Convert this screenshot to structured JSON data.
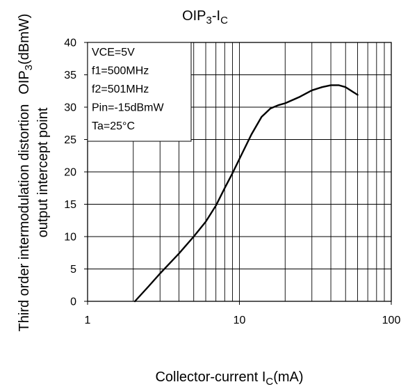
{
  "chart_data": {
    "type": "line",
    "title": {
      "base": "OIP",
      "sub": "3",
      "mid": "-I",
      "sub2": "C"
    },
    "xlabel": {
      "base": "Collector-current I",
      "sub": "C",
      "tail": "(mA)"
    },
    "ylabel_lines": [
      {
        "text": "Third order intermodulation distortion",
        "base": "OIP",
        "sub": "3",
        "tail": "(dBmW)"
      },
      {
        "text": "output intercept point"
      }
    ],
    "x_scale": "log",
    "xlim": [
      1,
      100
    ],
    "ylim": [
      0,
      40
    ],
    "x_ticks": [
      {
        "value": 1,
        "label": "1"
      },
      {
        "value": 10,
        "label": "10"
      },
      {
        "value": 100,
        "label": "100"
      }
    ],
    "y_ticks": [
      {
        "value": 0,
        "label": "0"
      },
      {
        "value": 5,
        "label": "5"
      },
      {
        "value": 10,
        "label": "10"
      },
      {
        "value": 15,
        "label": "15"
      },
      {
        "value": 20,
        "label": "20"
      },
      {
        "value": 25,
        "label": "25"
      },
      {
        "value": 30,
        "label": "30"
      },
      {
        "value": 35,
        "label": "35"
      },
      {
        "value": 40,
        "label": "40"
      }
    ],
    "grid": true,
    "conditions": [
      "VCE=5V",
      "f1=500MHz",
      "f2=501MHz",
      "Pin=-15dBmW",
      "Ta=25°C"
    ],
    "conditions_placement": "top-left",
    "series": [
      {
        "color": "#000000",
        "x": [
          2.05,
          2.5,
          3,
          4,
          5,
          6,
          7,
          8,
          9,
          10,
          12,
          14,
          16,
          18,
          20,
          25,
          30,
          35,
          40,
          45,
          50,
          60
        ],
        "y": [
          0,
          2.2,
          4.3,
          7.4,
          10,
          12.3,
          14.8,
          17.5,
          19.8,
          22,
          25.8,
          28.5,
          29.8,
          30.3,
          30.6,
          31.6,
          32.6,
          33.1,
          33.4,
          33.4,
          33.1,
          31.9
        ]
      }
    ]
  }
}
